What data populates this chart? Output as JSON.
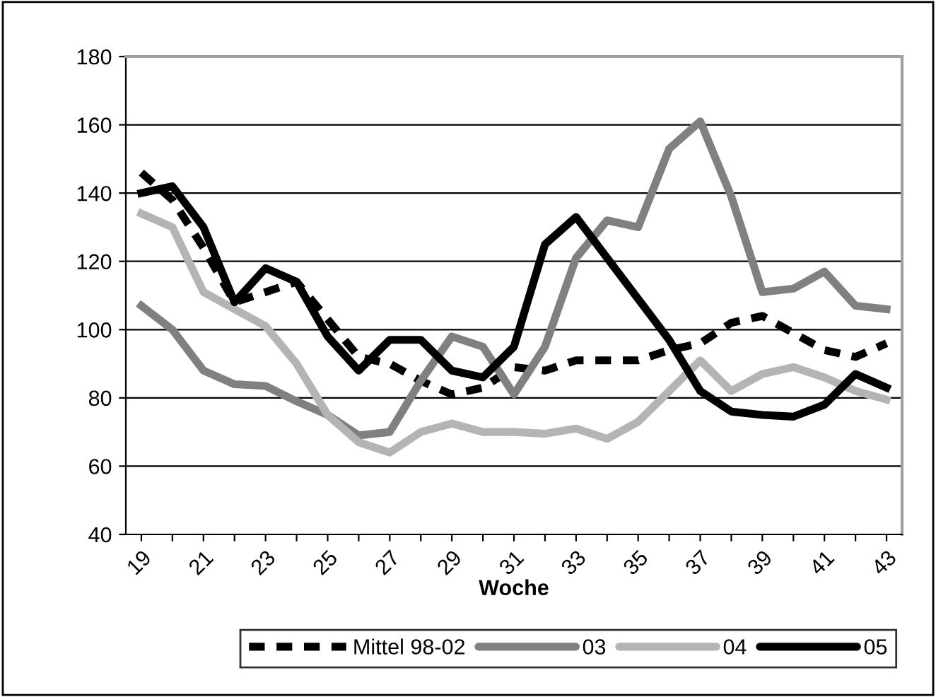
{
  "chart_data": {
    "type": "line",
    "xlabel": "Woche",
    "categories": [
      "19",
      null,
      "21",
      null,
      "23",
      null,
      "25",
      null,
      "27",
      null,
      "29",
      null,
      "31",
      null,
      "33",
      null,
      "35",
      null,
      "37",
      null,
      "39",
      null,
      "41",
      null,
      "43"
    ],
    "series": [
      {
        "name": "Mittel 98-02",
        "color": "#000000",
        "line_style": "dashed",
        "values": [
          146,
          138,
          124,
          108,
          111,
          114,
          103,
          92,
          90,
          85,
          81,
          83,
          89,
          88,
          91,
          91,
          91,
          94,
          96,
          102,
          104,
          99,
          94,
          92,
          96
        ]
      },
      {
        "name": "03",
        "color": "#808080",
        "line_style": "solid",
        "values": [
          107,
          100,
          88,
          84,
          83.5,
          79,
          75,
          69,
          70,
          85,
          98,
          95,
          81,
          95,
          121,
          132,
          130,
          153,
          161,
          139,
          111,
          112,
          117,
          107,
          106
        ]
      },
      {
        "name": "04",
        "color": "#b4b4b4",
        "line_style": "solid",
        "values": [
          134,
          130,
          111,
          106,
          101,
          90,
          75,
          67,
          64,
          70,
          72.5,
          70,
          70,
          69.5,
          71,
          68,
          73,
          82,
          91,
          82,
          87,
          89,
          86,
          82,
          79.5
        ]
      },
      {
        "name": "05",
        "color": "#000000",
        "line_style": "solid",
        "values": [
          140,
          142,
          130,
          108,
          118,
          114,
          98,
          88,
          97,
          97,
          88,
          86,
          95,
          125,
          133,
          121,
          109,
          97,
          82,
          76,
          75,
          74.5,
          78,
          87,
          83
        ]
      }
    ],
    "ylim": [
      40,
      180
    ],
    "yticks": [
      40,
      60,
      80,
      100,
      120,
      140,
      160,
      180
    ],
    "grid": "y",
    "legend": "bottom",
    "marker": "none"
  }
}
